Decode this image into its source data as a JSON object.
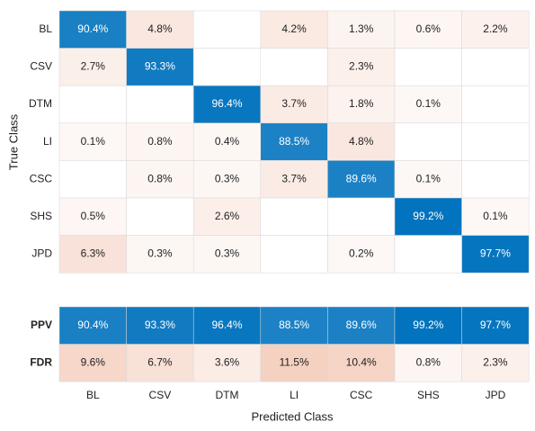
{
  "chart_data": {
    "type": "confusion_matrix",
    "xlabel": "Predicted Class",
    "ylabel": "True Class",
    "categories": [
      "BL",
      "CSV",
      "DTM",
      "LI",
      "CSC",
      "SHS",
      "JPD"
    ],
    "values": [
      [
        90.4,
        4.8,
        null,
        4.2,
        1.3,
        0.6,
        2.2
      ],
      [
        2.7,
        93.3,
        null,
        null,
        2.3,
        null,
        null
      ],
      [
        null,
        null,
        96.4,
        3.7,
        1.8,
        0.1,
        null
      ],
      [
        0.1,
        0.8,
        0.4,
        88.5,
        4.8,
        null,
        null
      ],
      [
        null,
        0.8,
        0.3,
        3.7,
        89.6,
        0.1,
        null
      ],
      [
        0.5,
        null,
        2.6,
        null,
        null,
        99.2,
        0.1
      ],
      [
        6.3,
        0.3,
        0.3,
        null,
        0.2,
        null,
        97.7
      ]
    ],
    "value_labels": [
      [
        "90.4%",
        "4.8%",
        null,
        "4.2%",
        "1.3%",
        "0.6%",
        "2.2%"
      ],
      [
        "2.7%",
        "93.3%",
        null,
        null,
        "2.3%",
        null,
        null
      ],
      [
        null,
        null,
        "96.4%",
        "3.7%",
        "1.8%",
        "0.1%",
        null
      ],
      [
        "0.1%",
        "0.8%",
        "0.4%",
        "88.5%",
        "4.8%",
        null,
        null
      ],
      [
        null,
        "0.8%",
        "0.3%",
        "3.7%",
        "89.6%",
        "0.1%",
        null
      ],
      [
        "0.5%",
        null,
        "2.6%",
        null,
        null,
        "99.2%",
        "0.1%"
      ],
      [
        "6.3%",
        "0.3%",
        "0.3%",
        null,
        "0.2%",
        null,
        "97.7%"
      ]
    ],
    "summary_rows": [
      {
        "name": "PPV",
        "values": [
          90.4,
          93.3,
          96.4,
          88.5,
          89.6,
          99.2,
          97.7
        ],
        "value_labels": [
          "90.4%",
          "93.3%",
          "96.4%",
          "88.5%",
          "89.6%",
          "99.2%",
          "97.7%"
        ],
        "color": "#0072bd"
      },
      {
        "name": "FDR",
        "values": [
          9.6,
          6.7,
          3.6,
          11.5,
          10.4,
          0.8,
          2.3
        ],
        "value_labels": [
          "9.6%",
          "6.7%",
          "3.6%",
          "11.5%",
          "10.4%",
          "0.8%",
          "2.3%"
        ],
        "color": "#d95319"
      }
    ],
    "diagonal_color": "#0072bd",
    "off_diagonal_color": "#d95319"
  }
}
